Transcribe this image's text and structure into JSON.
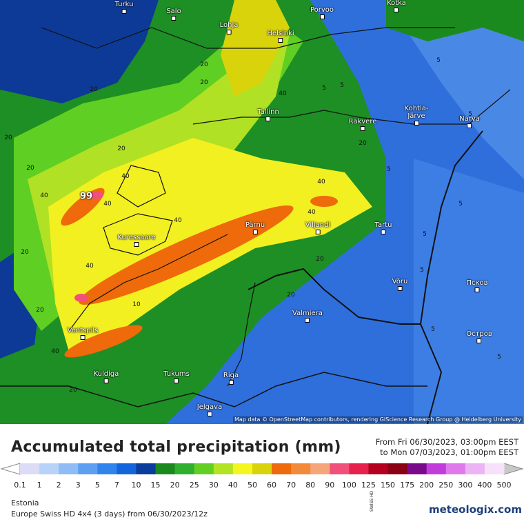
{
  "map": {
    "cities": [
      "Turku",
      "Salo",
      "Lohja",
      "Helsinki",
      "Porvoo",
      "Kotka",
      "Tallinn",
      "Rakvere",
      "Kohtla-Järve",
      "Narva",
      "Kuressaare",
      "Pärnu",
      "Viljandi",
      "Tartu",
      "Võru",
      "Псков",
      "Valmiera",
      "Ventspils",
      "Остров",
      "Kuldiga",
      "Tukums",
      "Riga",
      "Jelgava"
    ],
    "contour_labels": [
      20,
      20,
      20,
      20,
      40,
      20,
      40,
      40,
      40,
      20,
      40,
      20,
      40,
      20,
      40,
      40,
      20,
      40,
      10,
      20,
      5,
      5,
      5,
      5,
      5,
      5,
      5,
      5,
      5,
      5,
      20,
      20
    ],
    "max_label": "99",
    "attribution": "Map data © OpenStreetMap contributors, rendering GIScience Research Group @ Heidelberg University"
  },
  "header": {
    "title": "Accumulated total precipitation (mm)",
    "from": "From Fri 06/30/2023, 03:00pm EEST",
    "to": "to Mon 07/03/2023, 01:00pm EEST"
  },
  "legend": {
    "labels": [
      0.1,
      1,
      2,
      3,
      5,
      7,
      10,
      15,
      20,
      25,
      30,
      40,
      50,
      60,
      70,
      80,
      90,
      100,
      125,
      150,
      175,
      200,
      250,
      300,
      400,
      500
    ],
    "colors": [
      "#dcdcf7",
      "#b7d3fa",
      "#8fbcf6",
      "#5d9ff2",
      "#2f84ee",
      "#1464dc",
      "#0b3d9c",
      "#1b8a1e",
      "#2fb12f",
      "#63cf22",
      "#b2e423",
      "#f5f520",
      "#d9d30c",
      "#ee6a0a",
      "#f28a3a",
      "#f6a57a",
      "#f0507a",
      "#e8204c",
      "#b4001e",
      "#8c0014",
      "#7a0a8c",
      "#c23cdc",
      "#de7aec",
      "#ecb4f4",
      "#f6e0fa"
    ],
    "under_color": "#ffffff",
    "over_color": "#c8c8c8"
  },
  "footer": {
    "region": "Estonia",
    "model": "Europe Swiss HD 4x4 (3 days) from 06/30/2023/12z",
    "brand": "meteologix.com",
    "badge": "SWISS HD"
  }
}
